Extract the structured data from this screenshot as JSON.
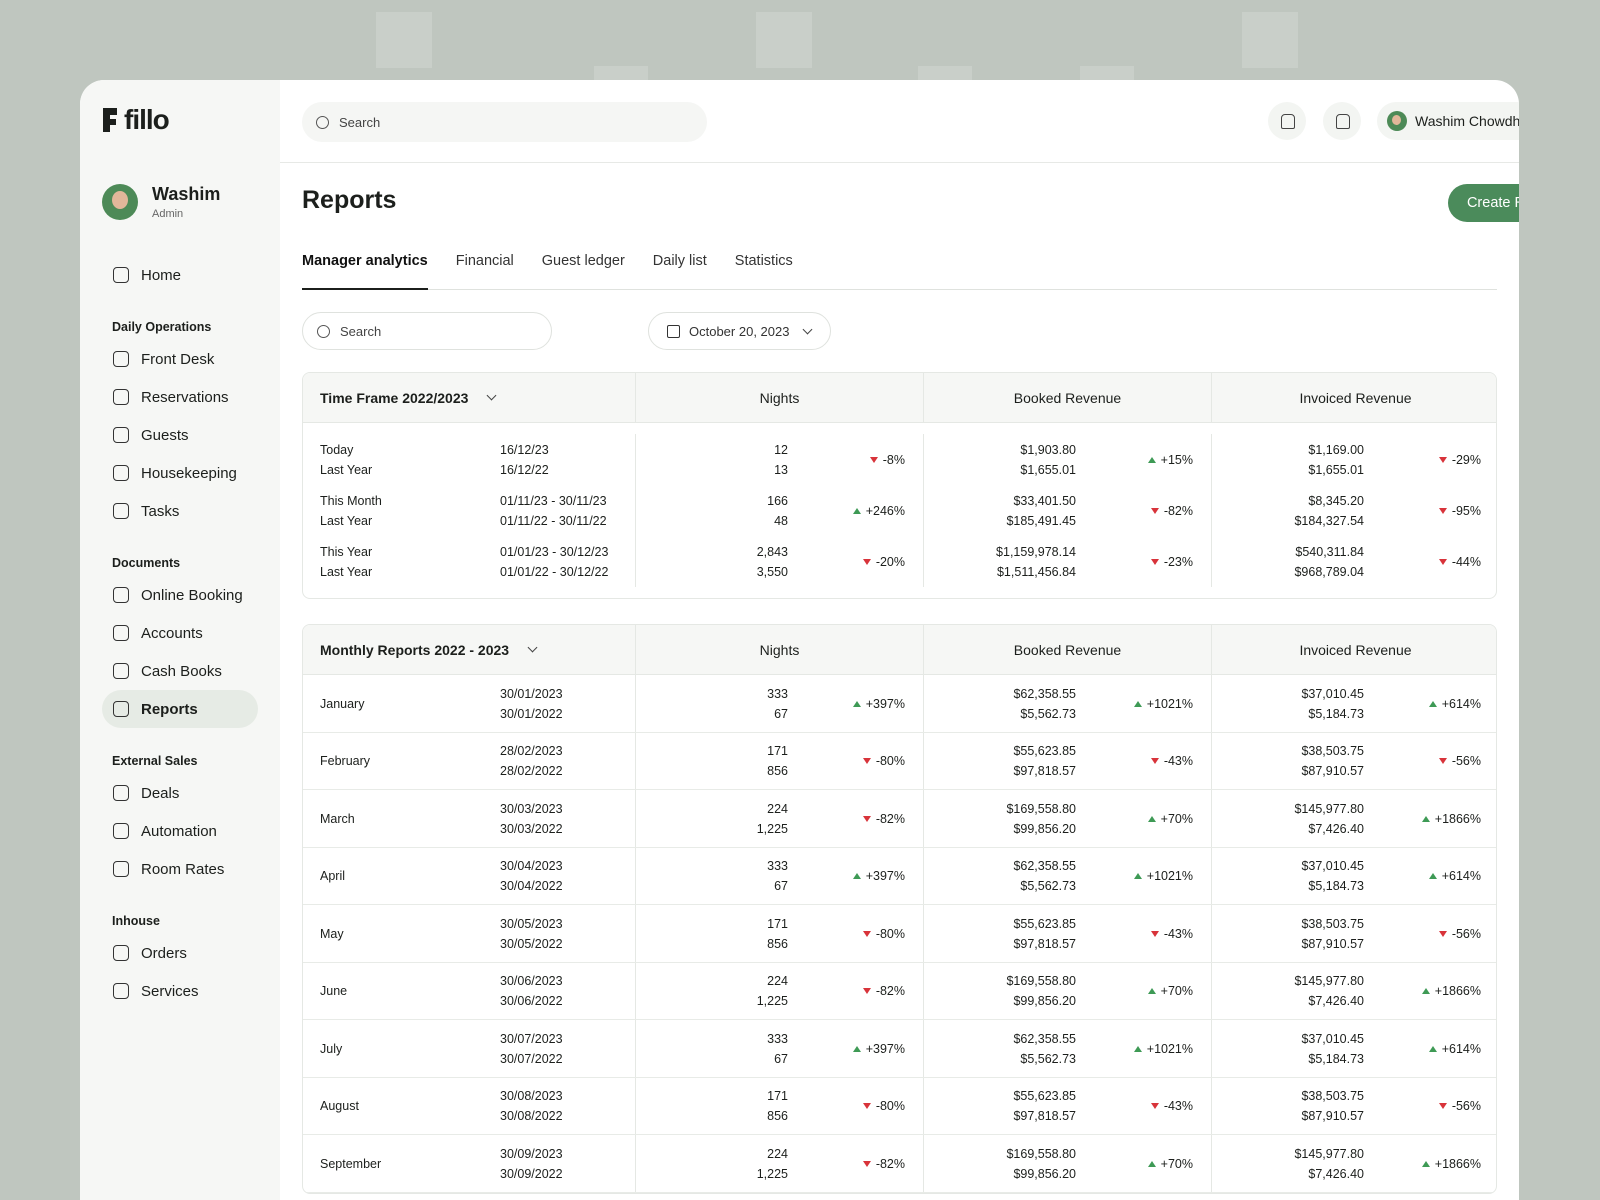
{
  "brand": "fillo",
  "topbar": {
    "search": "Search",
    "user": "Washim Chowdhury"
  },
  "profile": {
    "name": "Washim",
    "role": "Admin"
  },
  "nav": [
    {
      "heading": null,
      "items": [
        "Home"
      ]
    },
    {
      "heading": "Daily Operations",
      "items": [
        "Front Desk",
        "Reservations",
        "Guests",
        "Housekeeping",
        "Tasks"
      ]
    },
    {
      "heading": "Documents",
      "items": [
        "Online Booking",
        "Accounts",
        "Cash Books",
        "Reports"
      ]
    },
    {
      "heading": "External Sales",
      "items": [
        "Deals",
        "Automation",
        "Room Rates"
      ]
    },
    {
      "heading": "Inhouse",
      "items": [
        "Orders",
        "Services"
      ]
    }
  ],
  "page": {
    "title": "Reports",
    "button": "Create Report",
    "tabs": [
      "Manager analytics",
      "Financial",
      "Guest ledger",
      "Daily list",
      "Statistics"
    ],
    "filter_search": "Search",
    "date": "October 20, 2023"
  },
  "timeframe": {
    "title": "Time Frame 2022/2023",
    "columns": [
      "Nights",
      "Booked Revenue",
      "Invoiced Revenue"
    ],
    "rows": [
      {
        "labels": [
          "Today",
          "Last Year"
        ],
        "dates": [
          "16/12/23",
          "16/12/22"
        ],
        "nights": [
          "12",
          "13"
        ],
        "nights_change": "-8%",
        "booked": [
          "$1,903.80",
          "$1,655.01"
        ],
        "booked_change": "+15%",
        "invoiced": [
          "$1,169.00",
          "$1,655.01"
        ],
        "invoiced_change": "-29%"
      },
      {
        "labels": [
          "This Month",
          "Last Year"
        ],
        "dates": [
          "01/11/23 - 30/11/23",
          "01/11/22 - 30/11/22"
        ],
        "nights": [
          "166",
          "48"
        ],
        "nights_change": "+246%",
        "booked": [
          "$33,401.50",
          "$185,491.45"
        ],
        "booked_change": "-82%",
        "invoiced": [
          "$8,345.20",
          "$184,327.54"
        ],
        "invoiced_change": "-95%"
      },
      {
        "labels": [
          "This Year",
          "Last Year"
        ],
        "dates": [
          "01/01/23 - 30/12/23",
          "01/01/22 - 30/12/22"
        ],
        "nights": [
          "2,843",
          "3,550"
        ],
        "nights_change": "-20%",
        "booked": [
          "$1,159,978.14",
          "$1,511,456.84"
        ],
        "booked_change": "-23%",
        "invoiced": [
          "$540,311.84",
          "$968,789.04"
        ],
        "invoiced_change": "-44%"
      }
    ]
  },
  "monthly": {
    "title": "Monthly Reports 2022 - 2023",
    "columns": [
      "Nights",
      "Booked Revenue",
      "Invoiced Revenue"
    ],
    "rows": [
      {
        "month": "January",
        "dates": [
          "30/01/2023",
          "30/01/2022"
        ],
        "nights": [
          "333",
          "67"
        ],
        "nights_change": "+397%",
        "booked": [
          "$62,358.55",
          "$5,562.73"
        ],
        "booked_change": "+1021%",
        "invoiced": [
          "$37,010.45",
          "$5,184.73"
        ],
        "invoiced_change": "+614%"
      },
      {
        "month": "February",
        "dates": [
          "28/02/2023",
          "28/02/2022"
        ],
        "nights": [
          "171",
          "856"
        ],
        "nights_change": "-80%",
        "booked": [
          "$55,623.85",
          "$97,818.57"
        ],
        "booked_change": "-43%",
        "invoiced": [
          "$38,503.75",
          "$87,910.57"
        ],
        "invoiced_change": "-56%"
      },
      {
        "month": "March",
        "dates": [
          "30/03/2023",
          "30/03/2022"
        ],
        "nights": [
          "224",
          "1,225"
        ],
        "nights_change": "-82%",
        "booked": [
          "$169,558.80",
          "$99,856.20"
        ],
        "booked_change": "+70%",
        "invoiced": [
          "$145,977.80",
          "$7,426.40"
        ],
        "invoiced_change": "+1866%"
      },
      {
        "month": "April",
        "dates": [
          "30/04/2023",
          "30/04/2022"
        ],
        "nights": [
          "333",
          "67"
        ],
        "nights_change": "+397%",
        "booked": [
          "$62,358.55",
          "$5,562.73"
        ],
        "booked_change": "+1021%",
        "invoiced": [
          "$37,010.45",
          "$5,184.73"
        ],
        "invoiced_change": "+614%"
      },
      {
        "month": "May",
        "dates": [
          "30/05/2023",
          "30/05/2022"
        ],
        "nights": [
          "171",
          "856"
        ],
        "nights_change": "-80%",
        "booked": [
          "$55,623.85",
          "$97,818.57"
        ],
        "booked_change": "-43%",
        "invoiced": [
          "$38,503.75",
          "$87,910.57"
        ],
        "invoiced_change": "-56%"
      },
      {
        "month": "June",
        "dates": [
          "30/06/2023",
          "30/06/2022"
        ],
        "nights": [
          "224",
          "1,225"
        ],
        "nights_change": "-82%",
        "booked": [
          "$169,558.80",
          "$99,856.20"
        ],
        "booked_change": "+70%",
        "invoiced": [
          "$145,977.80",
          "$7,426.40"
        ],
        "invoiced_change": "+1866%"
      },
      {
        "month": "July",
        "dates": [
          "30/07/2023",
          "30/07/2022"
        ],
        "nights": [
          "333",
          "67"
        ],
        "nights_change": "+397%",
        "booked": [
          "$62,358.55",
          "$5,562.73"
        ],
        "booked_change": "+1021%",
        "invoiced": [
          "$37,010.45",
          "$5,184.73"
        ],
        "invoiced_change": "+614%"
      },
      {
        "month": "August",
        "dates": [
          "30/08/2023",
          "30/08/2022"
        ],
        "nights": [
          "171",
          "856"
        ],
        "nights_change": "-80%",
        "booked": [
          "$55,623.85",
          "$97,818.57"
        ],
        "booked_change": "-43%",
        "invoiced": [
          "$38,503.75",
          "$87,910.57"
        ],
        "invoiced_change": "-56%"
      },
      {
        "month": "September",
        "dates": [
          "30/09/2023",
          "30/09/2022"
        ],
        "nights": [
          "224",
          "1,225"
        ],
        "nights_change": "-82%",
        "booked": [
          "$169,558.80",
          "$99,856.20"
        ],
        "booked_change": "+70%",
        "invoiced": [
          "$145,977.80",
          "$7,426.40"
        ],
        "invoiced_change": "+1866%"
      }
    ]
  }
}
